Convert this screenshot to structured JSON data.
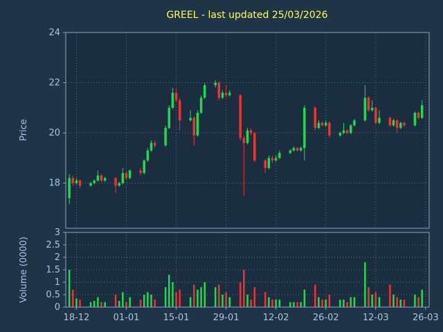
{
  "colors": {
    "background": "#203448",
    "axes_background": "#1b2e40",
    "grid": "#aebfd4",
    "spine": "#8fa5bd",
    "tick_label": "#a9c3e6",
    "axis_label": "#a9c3e6",
    "title": "#ffff55",
    "up": "#21d94e",
    "down": "#ee3333"
  },
  "chart_data": {
    "type": "candlestick",
    "title": "GREEL - last updated 25/03/2026",
    "legend": "none",
    "grid": "dotted",
    "price_axis": {
      "label": "Price",
      "ticks": [
        18,
        20,
        22,
        24
      ],
      "range": [
        16.2,
        24
      ]
    },
    "volume_axis": {
      "label": "Volume (0000)",
      "ticks": [
        0,
        0.5,
        1,
        1.5,
        2,
        2.5,
        3
      ],
      "range": [
        0,
        3
      ]
    },
    "x_axis": {
      "range": [
        "2025-12-15",
        "2026-03-27"
      ],
      "ticks": [
        {
          "date": "2025-12-18",
          "label": "18-12"
        },
        {
          "date": "2026-01-01",
          "label": "01-01"
        },
        {
          "date": "2026-01-15",
          "label": "15-01"
        },
        {
          "date": "2026-01-29",
          "label": "29-01"
        },
        {
          "date": "2026-02-12",
          "label": "12-02"
        },
        {
          "date": "2026-02-26",
          "label": "26-02"
        },
        {
          "date": "2026-03-12",
          "label": "12-03"
        },
        {
          "date": "2026-03-26",
          "label": "26-03"
        }
      ]
    },
    "candles": [
      {
        "date": "2025-12-16",
        "o": 17.4,
        "h": 18.35,
        "l": 17.15,
        "c": 18.2,
        "v": 1.5
      },
      {
        "date": "2025-12-17",
        "o": 18.2,
        "h": 18.3,
        "l": 17.9,
        "c": 18.0,
        "v": 0.7
      },
      {
        "date": "2025-12-18",
        "o": 18.0,
        "h": 18.2,
        "l": 17.95,
        "c": 18.1,
        "v": 0.35
      },
      {
        "date": "2025-12-19",
        "o": 18.1,
        "h": 18.15,
        "l": 17.8,
        "c": 17.9,
        "v": 0.3
      },
      {
        "date": "2025-12-22",
        "o": 17.9,
        "h": 18.05,
        "l": 17.85,
        "c": 18.0,
        "v": 0.2
      },
      {
        "date": "2025-12-23",
        "o": 18.0,
        "h": 18.15,
        "l": 17.95,
        "c": 18.1,
        "v": 0.25
      },
      {
        "date": "2025-12-24",
        "o": 18.1,
        "h": 18.5,
        "l": 18.05,
        "c": 18.3,
        "v": 0.4
      },
      {
        "date": "2025-12-25",
        "o": 18.3,
        "h": 18.35,
        "l": 18.05,
        "c": 18.1,
        "v": 0.2
      },
      {
        "date": "2025-12-26",
        "o": 18.1,
        "h": 18.25,
        "l": 18.05,
        "c": 18.2,
        "v": 0.2
      },
      {
        "date": "2025-12-29",
        "o": 18.2,
        "h": 18.25,
        "l": 17.6,
        "c": 17.9,
        "v": 0.5
      },
      {
        "date": "2025-12-30",
        "o": 17.9,
        "h": 18.05,
        "l": 17.85,
        "c": 18.0,
        "v": 0.25
      },
      {
        "date": "2025-12-31",
        "o": 18.0,
        "h": 18.6,
        "l": 17.95,
        "c": 18.4,
        "v": 0.6
      },
      {
        "date": "2026-01-01",
        "o": 18.4,
        "h": 18.45,
        "l": 18.15,
        "c": 18.2,
        "v": 0.2
      },
      {
        "date": "2026-01-02",
        "o": 18.2,
        "h": 18.55,
        "l": 18.15,
        "c": 18.5,
        "v": 0.4
      },
      {
        "date": "2026-01-05",
        "o": 18.5,
        "h": 18.6,
        "l": 18.3,
        "c": 18.4,
        "v": 0.3
      },
      {
        "date": "2026-01-06",
        "o": 18.4,
        "h": 18.95,
        "l": 18.35,
        "c": 18.9,
        "v": 0.5
      },
      {
        "date": "2026-01-07",
        "o": 18.9,
        "h": 19.4,
        "l": 18.85,
        "c": 19.3,
        "v": 0.6
      },
      {
        "date": "2026-01-08",
        "o": 19.3,
        "h": 19.7,
        "l": 19.25,
        "c": 19.6,
        "v": 0.5
      },
      {
        "date": "2026-01-09",
        "o": 19.6,
        "h": 19.7,
        "l": 19.4,
        "c": 19.5,
        "v": 0.3
      },
      {
        "date": "2026-01-12",
        "o": 19.5,
        "h": 20.3,
        "l": 19.45,
        "c": 20.2,
        "v": 0.8
      },
      {
        "date": "2026-01-13",
        "o": 20.2,
        "h": 21.1,
        "l": 20.15,
        "c": 21.0,
        "v": 1.3
      },
      {
        "date": "2026-01-14",
        "o": 21.0,
        "h": 21.8,
        "l": 20.95,
        "c": 21.6,
        "v": 1.0
      },
      {
        "date": "2026-01-15",
        "o": 21.6,
        "h": 21.75,
        "l": 21.2,
        "c": 21.3,
        "v": 0.6
      },
      {
        "date": "2026-01-16",
        "o": 21.3,
        "h": 21.4,
        "l": 20.1,
        "c": 20.5,
        "v": 0.7
      },
      {
        "date": "2026-01-19",
        "o": 20.5,
        "h": 20.9,
        "l": 20.45,
        "c": 20.6,
        "v": 0.4
      },
      {
        "date": "2026-01-20",
        "o": 20.6,
        "h": 20.65,
        "l": 19.5,
        "c": 19.9,
        "v": 0.9
      },
      {
        "date": "2026-01-21",
        "o": 19.9,
        "h": 20.9,
        "l": 19.85,
        "c": 20.8,
        "v": 0.7
      },
      {
        "date": "2026-01-22",
        "o": 20.8,
        "h": 21.5,
        "l": 20.75,
        "c": 21.4,
        "v": 0.8
      },
      {
        "date": "2026-01-23",
        "o": 21.4,
        "h": 22.0,
        "l": 21.35,
        "c": 21.9,
        "v": 1.0
      },
      {
        "date": "2026-01-26",
        "o": 21.9,
        "h": 22.1,
        "l": 21.8,
        "c": 22.0,
        "v": 0.8
      },
      {
        "date": "2026-01-27",
        "o": 22.0,
        "h": 22.05,
        "l": 21.3,
        "c": 21.4,
        "v": 0.9
      },
      {
        "date": "2026-01-28",
        "o": 21.4,
        "h": 21.7,
        "l": 21.35,
        "c": 21.6,
        "v": 0.5
      },
      {
        "date": "2026-01-29",
        "o": 21.6,
        "h": 21.9,
        "l": 21.4,
        "c": 21.5,
        "v": 0.6
      },
      {
        "date": "2026-01-30",
        "o": 21.5,
        "h": 21.7,
        "l": 21.45,
        "c": 21.6,
        "v": 0.4
      },
      {
        "date": "2026-02-02",
        "o": 21.5,
        "h": 21.55,
        "l": 19.7,
        "c": 19.8,
        "v": 1.0
      },
      {
        "date": "2026-02-03",
        "o": 19.8,
        "h": 19.9,
        "l": 17.5,
        "c": 19.6,
        "v": 1.5
      },
      {
        "date": "2026-02-04",
        "o": 19.6,
        "h": 20.2,
        "l": 19.55,
        "c": 20.1,
        "v": 0.5
      },
      {
        "date": "2026-02-05",
        "o": 20.1,
        "h": 20.2,
        "l": 19.9,
        "c": 20.0,
        "v": 0.3
      },
      {
        "date": "2026-02-06",
        "o": 20.0,
        "h": 20.05,
        "l": 18.85,
        "c": 18.9,
        "v": 0.8
      },
      {
        "date": "2026-02-09",
        "o": 18.9,
        "h": 18.95,
        "l": 18.4,
        "c": 18.6,
        "v": 0.6
      },
      {
        "date": "2026-02-10",
        "o": 18.6,
        "h": 19.1,
        "l": 18.55,
        "c": 19.0,
        "v": 0.4
      },
      {
        "date": "2026-02-11",
        "o": 19.0,
        "h": 19.1,
        "l": 18.8,
        "c": 18.9,
        "v": 0.3
      },
      {
        "date": "2026-02-12",
        "o": 18.9,
        "h": 19.1,
        "l": 18.85,
        "c": 19.0,
        "v": 0.3
      },
      {
        "date": "2026-02-13",
        "o": 19.0,
        "h": 19.3,
        "l": 18.95,
        "c": 19.2,
        "v": 0.3
      },
      {
        "date": "2026-02-16",
        "o": 19.2,
        "h": 19.35,
        "l": 19.15,
        "c": 19.3,
        "v": 0.2
      },
      {
        "date": "2026-02-17",
        "o": 19.3,
        "h": 19.45,
        "l": 19.25,
        "c": 19.4,
        "v": 0.2
      },
      {
        "date": "2026-02-18",
        "o": 19.4,
        "h": 19.45,
        "l": 19.25,
        "c": 19.3,
        "v": 0.2
      },
      {
        "date": "2026-02-19",
        "o": 19.3,
        "h": 19.45,
        "l": 19.25,
        "c": 19.4,
        "v": 0.2
      },
      {
        "date": "2026-02-20",
        "o": 19.4,
        "h": 21.1,
        "l": 18.9,
        "c": 21.0,
        "v": 0.7
      },
      {
        "date": "2026-02-23",
        "o": 21.0,
        "h": 21.05,
        "l": 20.1,
        "c": 20.2,
        "v": 0.9
      },
      {
        "date": "2026-02-24",
        "o": 20.2,
        "h": 20.5,
        "l": 20.15,
        "c": 20.4,
        "v": 0.4
      },
      {
        "date": "2026-02-25",
        "o": 20.4,
        "h": 20.45,
        "l": 20.25,
        "c": 20.3,
        "v": 0.3
      },
      {
        "date": "2026-02-26",
        "o": 20.3,
        "h": 20.5,
        "l": 20.25,
        "c": 20.4,
        "v": 0.3
      },
      {
        "date": "2026-02-27",
        "o": 20.4,
        "h": 20.45,
        "l": 19.8,
        "c": 19.9,
        "v": 0.5
      },
      {
        "date": "2026-03-02",
        "o": 19.9,
        "h": 20.05,
        "l": 19.85,
        "c": 20.0,
        "v": 0.3
      },
      {
        "date": "2026-03-03",
        "o": 20.0,
        "h": 20.4,
        "l": 19.95,
        "c": 20.1,
        "v": 0.3
      },
      {
        "date": "2026-03-04",
        "o": 20.1,
        "h": 20.15,
        "l": 19.95,
        "c": 20.0,
        "v": 0.2
      },
      {
        "date": "2026-03-05",
        "o": 20.0,
        "h": 20.35,
        "l": 19.95,
        "c": 20.3,
        "v": 0.4
      },
      {
        "date": "2026-03-06",
        "o": 20.3,
        "h": 20.55,
        "l": 20.25,
        "c": 20.5,
        "v": 0.4
      },
      {
        "date": "2026-03-09",
        "o": 20.5,
        "h": 21.9,
        "l": 20.45,
        "c": 21.4,
        "v": 1.8
      },
      {
        "date": "2026-03-10",
        "o": 21.4,
        "h": 21.45,
        "l": 20.85,
        "c": 20.9,
        "v": 0.8
      },
      {
        "date": "2026-03-11",
        "o": 20.9,
        "h": 21.3,
        "l": 20.85,
        "c": 21.0,
        "v": 0.5
      },
      {
        "date": "2026-03-12",
        "o": 21.0,
        "h": 21.05,
        "l": 20.35,
        "c": 20.4,
        "v": 0.6
      },
      {
        "date": "2026-03-13",
        "o": 20.4,
        "h": 20.9,
        "l": 20.35,
        "c": 20.6,
        "v": 0.4
      },
      {
        "date": "2026-03-16",
        "o": 20.6,
        "h": 20.65,
        "l": 20.25,
        "c": 20.3,
        "v": 0.9
      },
      {
        "date": "2026-03-17",
        "o": 20.3,
        "h": 20.55,
        "l": 20.25,
        "c": 20.5,
        "v": 0.5
      },
      {
        "date": "2026-03-18",
        "o": 20.5,
        "h": 20.55,
        "l": 20.0,
        "c": 20.2,
        "v": 0.4
      },
      {
        "date": "2026-03-19",
        "o": 20.2,
        "h": 20.45,
        "l": 20.15,
        "c": 20.4,
        "v": 0.3
      },
      {
        "date": "2026-03-20",
        "o": 20.4,
        "h": 20.45,
        "l": 20.25,
        "c": 20.3,
        "v": 0.3
      },
      {
        "date": "2026-03-23",
        "o": 20.3,
        "h": 20.85,
        "l": 20.25,
        "c": 20.8,
        "v": 0.5
      },
      {
        "date": "2026-03-24",
        "o": 20.8,
        "h": 20.85,
        "l": 20.55,
        "c": 20.6,
        "v": 0.4
      },
      {
        "date": "2026-03-25",
        "o": 20.6,
        "h": 21.3,
        "l": 20.55,
        "c": 21.1,
        "v": 0.7
      }
    ]
  }
}
